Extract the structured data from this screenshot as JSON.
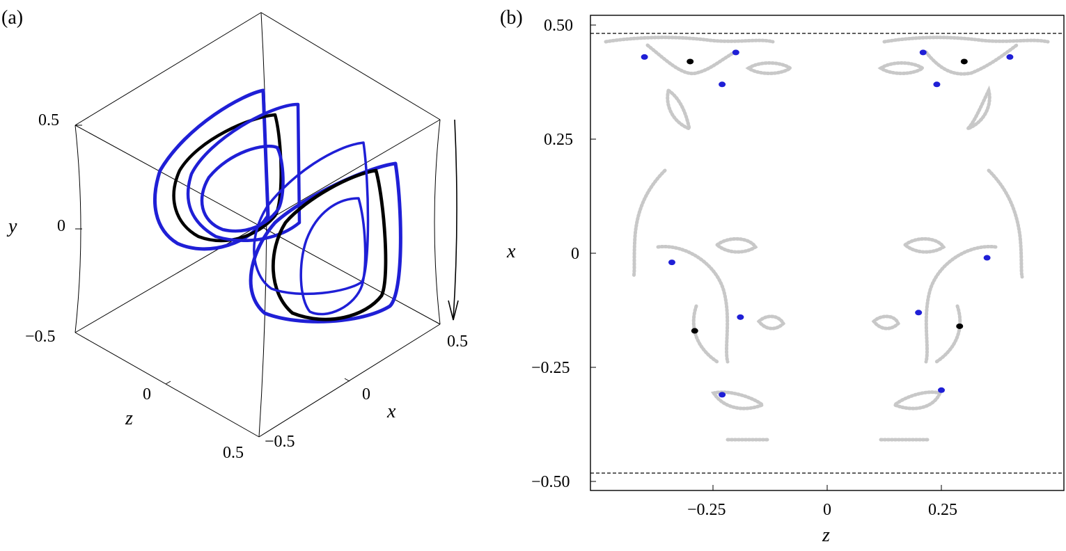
{
  "panel_labels": {
    "a": "(a)",
    "b": "(b)"
  },
  "panel_a": {
    "axes": {
      "x": "x",
      "y": "y",
      "z": "z"
    },
    "ticks": {
      "y_top": "0.5",
      "y_mid": "0",
      "y_bot": "−0.5",
      "z_mid": "0",
      "z_end": "0.5",
      "x_start": "−0.5",
      "x_mid": "0",
      "x_end": "0.5"
    }
  },
  "colors": {
    "black_orbit": "#000000",
    "blue_orbit": "#1f1fd6",
    "grey_points": "#c8c8c8",
    "axis": "#000000"
  },
  "chart_data": [
    {
      "type": "line",
      "panel": "a",
      "projection": "3d",
      "axes": {
        "x": "x",
        "y": "y",
        "z": "z"
      },
      "xlim": [
        -0.5,
        0.5
      ],
      "ylim": [
        -0.5,
        0.5
      ],
      "zlim": [
        -0.5,
        0.5
      ],
      "annotations": [
        "rotation arrow along right edge"
      ],
      "series": [
        {
          "color": "black",
          "description_points": [
            [
              0.2,
              -0.05,
              -0.25
            ],
            [
              0.25,
              0.0,
              0.2
            ]
          ]
        },
        {
          "color": "blue",
          "description_points": [
            [
              0.2,
              -0.05,
              -0.35
            ],
            [
              0.35,
              0.0,
              0.25
            ]
          ]
        }
      ]
    },
    {
      "type": "scatter",
      "panel": "b",
      "xlabel": "z",
      "ylabel": "x",
      "xlim": [
        -0.52,
        0.52
      ],
      "ylim": [
        -0.52,
        0.52
      ],
      "xticks": [
        -0.25,
        0,
        0.25
      ],
      "xtick_labels": [
        "−0.25",
        "0",
        "0.25"
      ],
      "yticks": [
        0.5,
        0.25,
        0,
        -0.25,
        -0.5
      ],
      "ytick_labels": [
        "0.50",
        "0.25",
        "0",
        "−0.25",
        "−0.50"
      ],
      "hlines": [
        0.48,
        -0.48
      ],
      "black_points": [
        [
          -0.3,
          0.42
        ],
        [
          0.3,
          0.42
        ],
        [
          -0.29,
          -0.17
        ],
        [
          0.29,
          -0.16
        ]
      ],
      "blue_points": [
        [
          -0.4,
          0.43
        ],
        [
          -0.2,
          0.44
        ],
        [
          -0.23,
          0.37
        ],
        [
          0.21,
          0.44
        ],
        [
          0.24,
          0.37
        ],
        [
          0.4,
          0.43
        ],
        [
          -0.34,
          -0.02
        ],
        [
          0.35,
          -0.01
        ],
        [
          -0.19,
          -0.14
        ],
        [
          0.2,
          -0.13
        ],
        [
          -0.23,
          -0.31
        ],
        [
          0.25,
          -0.3
        ]
      ],
      "grey_points": "many"
    }
  ]
}
